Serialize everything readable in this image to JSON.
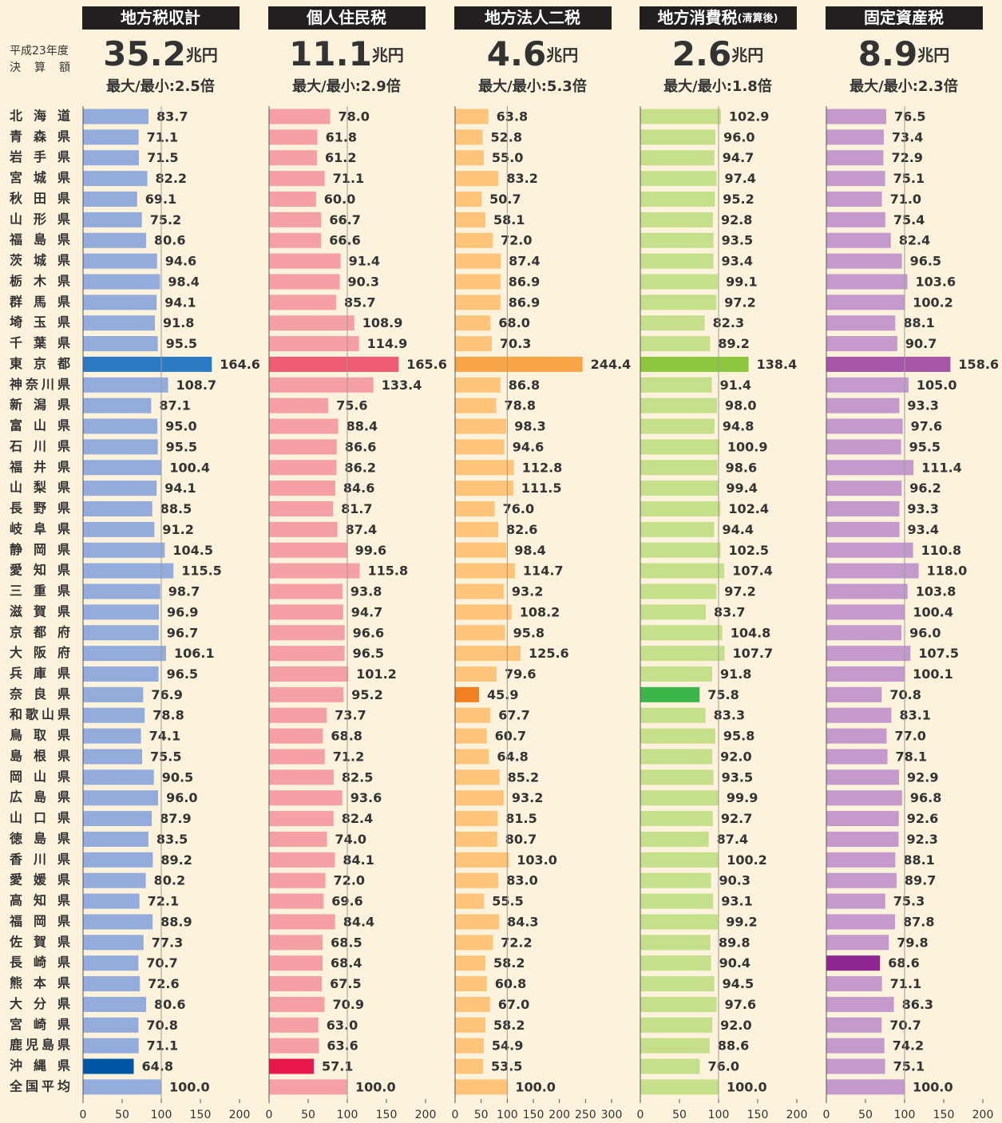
{
  "header_lines": [
    "平成23年度",
    "決算額"
  ],
  "chart_data": [
    {
      "type": "bar",
      "orientation": "horizontal",
      "title": "地方税収計",
      "total": 35.2,
      "unit": "兆円",
      "ratio": "最大/最小:2.5倍",
      "categories": [
        "北海道",
        "青森県",
        "岩手県",
        "宮城県",
        "秋田県",
        "山形県",
        "福島県",
        "茨城県",
        "栃木県",
        "群馬県",
        "埼玉県",
        "千葉県",
        "東京都",
        "神奈川県",
        "新潟県",
        "富山県",
        "石川県",
        "福井県",
        "山梨県",
        "長野県",
        "岐阜県",
        "静岡県",
        "愛知県",
        "三重県",
        "滋賀県",
        "京都府",
        "大阪府",
        "兵庫県",
        "奈良県",
        "和歌山県",
        "鳥取県",
        "島根県",
        "岡山県",
        "広島県",
        "山口県",
        "徳島県",
        "香川県",
        "愛媛県",
        "高知県",
        "福岡県",
        "佐賀県",
        "長崎県",
        "熊本県",
        "大分県",
        "宮崎県",
        "鹿児島県",
        "沖縄県",
        "全国平均"
      ],
      "values": [
        83.7,
        71.1,
        71.5,
        82.2,
        69.1,
        75.2,
        80.6,
        94.6,
        98.4,
        94.1,
        91.8,
        95.5,
        164.6,
        108.7,
        87.1,
        95.0,
        95.5,
        100.4,
        94.1,
        88.5,
        91.2,
        104.5,
        115.5,
        98.7,
        96.9,
        96.7,
        106.1,
        96.5,
        76.9,
        78.8,
        74.1,
        75.5,
        90.5,
        96.0,
        87.9,
        83.5,
        89.2,
        80.2,
        72.1,
        88.9,
        77.3,
        70.7,
        72.6,
        80.6,
        70.8,
        71.1,
        64.8,
        100.0
      ],
      "value_labels": [
        "83.7",
        "71.1",
        "71.5",
        "82.2",
        "69.1",
        "75.2",
        "80.6",
        "94.6",
        "98.4",
        "94.1",
        "91.8",
        "95.5",
        "164.6",
        "108.7",
        "87.1",
        "95.0",
        "95.5",
        "100.4",
        "94.1",
        "88.5",
        "91.2",
        "104.5",
        "115.5",
        "98.7",
        "96.9",
        "96.7",
        "106.1",
        "96.5",
        "76.9",
        "78.8",
        "74.1",
        "75.5",
        "90.5",
        "96.0",
        "87.9",
        "83.5",
        "89.2",
        "80.2",
        "72.1",
        "88.9",
        "77.3",
        "70.7",
        "72.6",
        "80.6",
        "70.8",
        "71.1",
        "64.8",
        "100.0"
      ],
      "color": "#93acdc",
      "max_color": "#2b7bc4",
      "min_color": "#0055a5",
      "xlim": [
        0,
        200
      ],
      "xticks": [
        0,
        50,
        100,
        150,
        200
      ],
      "ref_line": 100
    },
    {
      "type": "bar",
      "orientation": "horizontal",
      "title": "個人住民税",
      "total": 11.1,
      "unit": "兆円",
      "ratio": "最大/最小:2.9倍",
      "values": [
        78.0,
        61.8,
        61.2,
        71.1,
        60.0,
        66.7,
        66.6,
        91.4,
        90.3,
        85.7,
        108.9,
        114.9,
        165.6,
        133.4,
        75.6,
        88.4,
        86.6,
        86.2,
        84.6,
        81.7,
        87.4,
        99.6,
        115.8,
        93.8,
        94.7,
        96.6,
        96.5,
        101.2,
        95.2,
        73.7,
        68.8,
        71.2,
        82.5,
        93.6,
        82.4,
        74.0,
        84.1,
        72.0,
        69.6,
        84.4,
        68.5,
        68.4,
        67.5,
        70.9,
        63.0,
        63.6,
        57.1,
        100.0
      ],
      "value_labels": [
        "78.0",
        "61.8",
        "61.2",
        "71.1",
        "60.0",
        "66.7",
        "66.6",
        "91.4",
        "90.3",
        "85.7",
        "108.9",
        "114.9",
        "165.6",
        "133.4",
        "75.6",
        "88.4",
        "86.6",
        "86.2",
        "84.6",
        "81.7",
        "87.4",
        "99.6",
        "115.8",
        "93.8",
        "94.7",
        "96.6",
        "96.5",
        "101.2",
        "95.2",
        "73.7",
        "68.8",
        "71.2",
        "82.5",
        "93.6",
        "82.4",
        "74.0",
        "84.1",
        "72.0",
        "69.6",
        "84.4",
        "68.5",
        "68.4",
        "67.5",
        "70.9",
        "63.0",
        "63.6",
        "57.1",
        "100.0"
      ],
      "color": "#f5a0a5",
      "max_color": "#ee5c72",
      "min_color": "#e8174a",
      "xlim": [
        0,
        200
      ],
      "xticks": [
        0,
        50,
        100,
        150,
        200
      ],
      "ref_line": 100
    },
    {
      "type": "bar",
      "orientation": "horizontal",
      "title": "地方法人二税",
      "total": 4.6,
      "unit": "兆円",
      "ratio": "最大/最小:5.3倍",
      "values": [
        63.8,
        52.8,
        55.0,
        83.2,
        50.7,
        58.1,
        72.0,
        87.4,
        86.9,
        86.9,
        68.0,
        70.3,
        244.4,
        86.8,
        78.8,
        98.3,
        94.6,
        112.8,
        111.5,
        76.0,
        82.6,
        98.4,
        114.7,
        93.2,
        108.2,
        95.8,
        125.6,
        79.6,
        45.9,
        67.7,
        60.7,
        64.8,
        85.2,
        93.2,
        81.5,
        80.7,
        103.0,
        83.0,
        55.5,
        84.3,
        72.2,
        58.2,
        60.8,
        67.0,
        58.2,
        54.9,
        53.5,
        100.0
      ],
      "value_labels": [
        "63.8",
        "52.8",
        "55.0",
        "83.2",
        "50.7",
        "58.1",
        "72.0",
        "87.4",
        "86.9",
        "86.9",
        "68.0",
        "70.3",
        "244.4",
        "86.8",
        "78.8",
        "98.3",
        "94.6",
        "112.8",
        "111.5",
        "76.0",
        "82.6",
        "98.4",
        "114.7",
        "93.2",
        "108.2",
        "95.8",
        "125.6",
        "79.6",
        "45.9",
        "67.7",
        "60.7",
        "64.8",
        "85.2",
        "93.2",
        "81.5",
        "80.7",
        "103.0",
        "83.0",
        "55.5",
        "84.3",
        "72.2",
        "58.2",
        "60.8",
        "67.0",
        "58.2",
        "54.9",
        "53.5",
        "100.0"
      ],
      "color": "#fdc47a",
      "max_color": "#f9a54a",
      "min_color": "#f47f20",
      "xlim": [
        0,
        300
      ],
      "xticks": [
        0,
        50,
        100,
        150,
        200,
        250,
        300
      ],
      "ref_line": 100
    },
    {
      "type": "bar",
      "orientation": "horizontal",
      "title": "地方消費税",
      "title_note": "(清算後)",
      "total": 2.6,
      "unit": "兆円",
      "ratio": "最大/最小:1.8倍",
      "values": [
        102.9,
        96.0,
        94.7,
        97.4,
        95.2,
        92.8,
        93.5,
        93.4,
        99.1,
        97.2,
        82.3,
        89.2,
        138.4,
        91.4,
        98.0,
        94.8,
        100.9,
        98.6,
        99.4,
        102.4,
        94.4,
        102.5,
        107.4,
        97.2,
        83.7,
        104.8,
        107.7,
        91.8,
        75.8,
        83.3,
        95.8,
        92.0,
        93.5,
        99.9,
        92.7,
        87.4,
        100.2,
        90.3,
        93.1,
        99.2,
        89.8,
        90.4,
        94.5,
        97.6,
        92.0,
        88.6,
        76.0,
        100.0
      ],
      "value_labels": [
        "102.9",
        "96.0",
        "94.7",
        "97.4",
        "95.2",
        "92.8",
        "93.5",
        "93.4",
        "99.1",
        "97.2",
        "82.3",
        "89.2",
        "138.4",
        "91.4",
        "98.0",
        "94.8",
        "100.9",
        "98.6",
        "99.4",
        "102.4",
        "94.4",
        "102.5",
        "107.4",
        "97.2",
        "83.7",
        "104.8",
        "107.7",
        "91.8",
        "75.8",
        "83.3",
        "95.8",
        "92.0",
        "93.5",
        "99.9",
        "92.7",
        "87.4",
        "100.2",
        "90.3",
        "93.1",
        "99.2",
        "89.8",
        "90.4",
        "94.5",
        "97.6",
        "92.0",
        "88.6",
        "76.0",
        "100.0"
      ],
      "color": "#c6df8a",
      "max_color": "#8dc63f",
      "min_color": "#3cb54a",
      "xlim": [
        0,
        200
      ],
      "xticks": [
        0,
        50,
        100,
        150,
        200
      ],
      "ref_line": 100
    },
    {
      "type": "bar",
      "orientation": "horizontal",
      "title": "固定資産税",
      "total": 8.9,
      "unit": "兆円",
      "ratio": "最大/最小:2.3倍",
      "values": [
        76.5,
        73.4,
        72.9,
        75.1,
        71.0,
        75.4,
        82.4,
        96.5,
        103.6,
        100.2,
        88.1,
        90.7,
        158.6,
        105.0,
        93.3,
        97.6,
        95.5,
        111.4,
        96.2,
        93.3,
        93.4,
        110.8,
        118.0,
        103.8,
        100.4,
        96.0,
        107.5,
        100.1,
        70.8,
        83.1,
        77.0,
        78.1,
        92.9,
        96.8,
        92.6,
        92.3,
        88.1,
        89.7,
        75.3,
        87.8,
        79.8,
        68.6,
        71.1,
        86.3,
        70.7,
        74.2,
        75.1,
        100.0
      ],
      "value_labels": [
        "76.5",
        "73.4",
        "72.9",
        "75.1",
        "71.0",
        "75.4",
        "82.4",
        "96.5",
        "103.6",
        "100.2",
        "88.1",
        "90.7",
        "158.6",
        "105.0",
        "93.3",
        "97.6",
        "95.5",
        "111.4",
        "96.2",
        "93.3",
        "93.4",
        "110.8",
        "118.0",
        "103.8",
        "100.4",
        "96.0",
        "107.5",
        "100.1",
        "70.8",
        "83.1",
        "77.0",
        "78.1",
        "92.9",
        "96.8",
        "92.6",
        "92.3",
        "88.1",
        "89.7",
        "75.3",
        "87.8",
        "79.8",
        "68.6",
        "71.1",
        "86.3",
        "70.7",
        "74.2",
        "75.1",
        "100.0"
      ],
      "color": "#c39acb",
      "max_color": "#a757a8",
      "min_color": "#8e278f",
      "xlim": [
        0,
        200
      ],
      "xticks": [
        0,
        50,
        100,
        150,
        200
      ],
      "ref_line": 100
    }
  ]
}
